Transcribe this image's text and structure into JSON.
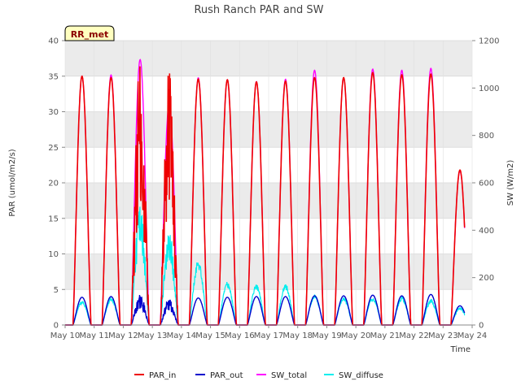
{
  "chart_data": {
    "type": "line",
    "title": "Rush Ranch PAR and SW",
    "xlabel": "Time",
    "ylabel_left": "PAR (umol/m2/s)",
    "ylabel_right": "SW (W/m2)",
    "badge": "RR_met",
    "ylim_left": [
      0,
      40
    ],
    "ylim_right": [
      0,
      1200
    ],
    "yticks_left": [
      0,
      5,
      10,
      15,
      20,
      25,
      30,
      35,
      40
    ],
    "yticks_right": [
      0,
      200,
      400,
      600,
      800,
      1000,
      1200
    ],
    "xlim_days": [
      10,
      24
    ],
    "xtick_labels": [
      "May 10",
      "May 11",
      "May 12",
      "May 13",
      "May 14",
      "May 15",
      "May 16",
      "May 17",
      "May 18",
      "May 19",
      "May 20",
      "May 21",
      "May 22",
      "May 23",
      "May 24"
    ],
    "grid": true,
    "legend_position": "bottom",
    "day_peaks": {
      "days": [
        10,
        11,
        12,
        13,
        14,
        15,
        16,
        17,
        18,
        19,
        20,
        21,
        22,
        23
      ],
      "PAR_in": [
        35.0,
        34.8,
        35.5,
        34.7,
        34.6,
        34.5,
        34.2,
        34.3,
        34.8,
        34.8,
        35.5,
        35.2,
        35.3,
        21.8
      ],
      "PAR_out": [
        3.9,
        4.0,
        4.1,
        3.5,
        3.8,
        3.9,
        4.0,
        4.0,
        4.1,
        4.1,
        4.2,
        4.1,
        4.3,
        2.7
      ],
      "SW_total_wm2": [
        1050,
        1055,
        1120,
        930,
        1043,
        1035,
        1027,
        1037,
        1075,
        1043,
        1080,
        1075,
        1083,
        650
      ],
      "SW_diffuse_wm2": [
        95,
        108,
        420,
        335,
        255,
        170,
        160,
        160,
        120,
        110,
        110,
        110,
        100,
        70
      ]
    },
    "series": [
      {
        "name": "PAR_in",
        "color": "#ee0000"
      },
      {
        "name": "PAR_out",
        "color": "#0000cc"
      },
      {
        "name": "SW_total",
        "color": "#ff00ff"
      },
      {
        "name": "SW_diffuse",
        "color": "#00eeee"
      }
    ]
  }
}
